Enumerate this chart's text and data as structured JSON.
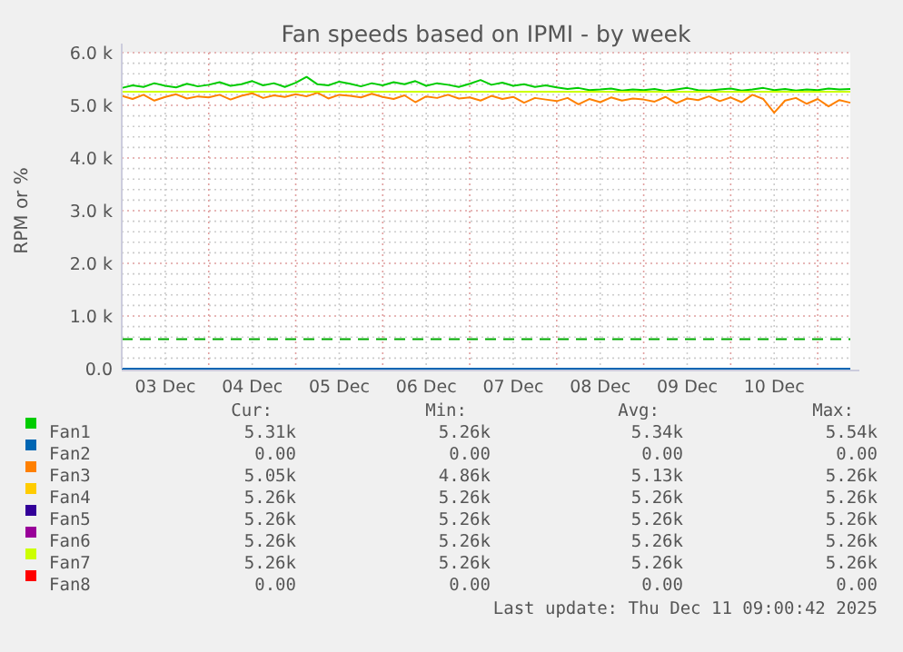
{
  "chart_data": {
    "type": "line",
    "title": "Fan speeds based on IPMI - by week",
    "ylabel": "RPM or %",
    "x": [
      "2025-12-03T00:00",
      "2025-12-03T03:00",
      "2025-12-03T06:00",
      "2025-12-03T09:00",
      "2025-12-03T12:00",
      "2025-12-03T15:00",
      "2025-12-03T18:00",
      "2025-12-03T21:00",
      "2025-12-04T00:00",
      "2025-12-04T03:00",
      "2025-12-04T06:00",
      "2025-12-04T09:00",
      "2025-12-04T12:00",
      "2025-12-04T15:00",
      "2025-12-04T18:00",
      "2025-12-04T21:00",
      "2025-12-05T00:00",
      "2025-12-05T03:00",
      "2025-12-05T06:00",
      "2025-12-05T09:00",
      "2025-12-05T12:00",
      "2025-12-05T15:00",
      "2025-12-05T18:00",
      "2025-12-05T21:00",
      "2025-12-06T00:00",
      "2025-12-06T03:00",
      "2025-12-06T06:00",
      "2025-12-06T09:00",
      "2025-12-06T12:00",
      "2025-12-06T15:00",
      "2025-12-06T18:00",
      "2025-12-06T21:00",
      "2025-12-07T00:00",
      "2025-12-07T03:00",
      "2025-12-07T06:00",
      "2025-12-07T09:00",
      "2025-12-07T12:00",
      "2025-12-07T15:00",
      "2025-12-07T18:00",
      "2025-12-07T21:00",
      "2025-12-08T00:00",
      "2025-12-08T03:00",
      "2025-12-08T06:00",
      "2025-12-08T09:00",
      "2025-12-08T12:00",
      "2025-12-08T15:00",
      "2025-12-08T18:00",
      "2025-12-08T21:00",
      "2025-12-09T00:00",
      "2025-12-09T03:00",
      "2025-12-09T06:00",
      "2025-12-09T09:00",
      "2025-12-09T12:00",
      "2025-12-09T15:00",
      "2025-12-09T18:00",
      "2025-12-09T21:00",
      "2025-12-10T00:00",
      "2025-12-10T03:00",
      "2025-12-10T06:00",
      "2025-12-10T09:00",
      "2025-12-10T12:00",
      "2025-12-10T15:00",
      "2025-12-10T18:00",
      "2025-12-10T21:00",
      "2025-12-11T00:00",
      "2025-12-11T03:00",
      "2025-12-11T06:00",
      "2025-12-11T09:00"
    ],
    "series": [
      {
        "name": "Fan1",
        "color": "#00cc00",
        "values": [
          5330,
          5380,
          5350,
          5420,
          5370,
          5340,
          5410,
          5360,
          5390,
          5440,
          5370,
          5400,
          5460,
          5380,
          5420,
          5350,
          5430,
          5540,
          5400,
          5380,
          5450,
          5410,
          5360,
          5420,
          5380,
          5440,
          5400,
          5460,
          5370,
          5420,
          5390,
          5350,
          5410,
          5480,
          5390,
          5430,
          5370,
          5400,
          5350,
          5380,
          5340,
          5310,
          5330,
          5290,
          5300,
          5320,
          5280,
          5300,
          5290,
          5310,
          5270,
          5300,
          5330,
          5290,
          5280,
          5300,
          5320,
          5280,
          5300,
          5330,
          5290,
          5310,
          5280,
          5300,
          5290,
          5320,
          5300,
          5310
        ]
      },
      {
        "name": "Fan2",
        "color": "#0066b3",
        "x": [
          "2025-12-03T00:00",
          "2025-12-11T09:00"
        ],
        "values": [
          0,
          0
        ]
      },
      {
        "name": "Fan3",
        "color": "#ff8000",
        "values": [
          5180,
          5120,
          5200,
          5090,
          5160,
          5210,
          5130,
          5170,
          5150,
          5200,
          5110,
          5180,
          5230,
          5140,
          5190,
          5160,
          5210,
          5170,
          5240,
          5130,
          5200,
          5180,
          5150,
          5220,
          5160,
          5120,
          5190,
          5060,
          5170,
          5140,
          5200,
          5130,
          5150,
          5090,
          5180,
          5120,
          5160,
          5050,
          5140,
          5110,
          5080,
          5140,
          5020,
          5120,
          5060,
          5150,
          5090,
          5130,
          5110,
          5070,
          5160,
          5040,
          5130,
          5100,
          5170,
          5080,
          5150,
          5060,
          5200,
          5120,
          4860,
          5090,
          5140,
          5030,
          5120,
          4980,
          5100,
          5050
        ]
      },
      {
        "name": "Fan4",
        "color": "#ffcc00",
        "values": [
          null,
          null,
          null,
          null,
          null,
          null,
          null,
          null,
          null,
          null,
          null,
          null,
          null,
          null,
          null,
          null,
          null,
          null,
          null,
          null,
          null,
          null,
          null,
          null,
          null,
          null,
          null,
          null,
          null,
          null,
          null,
          null,
          null,
          null,
          null,
          null,
          null,
          null,
          null,
          null,
          null,
          null,
          null,
          null,
          null,
          null,
          null,
          null,
          null,
          null,
          null,
          null,
          null,
          null,
          null,
          null,
          null,
          null,
          null,
          null,
          null,
          null,
          null,
          null,
          null,
          null,
          null,
          null
        ]
      },
      {
        "name": "Fan5",
        "color": "#330099",
        "values": [
          null,
          null,
          null,
          null,
          null,
          null,
          null,
          null,
          null,
          null,
          null,
          null,
          null,
          null,
          null,
          null,
          null,
          null,
          null,
          null,
          null,
          null,
          null,
          null,
          null,
          null,
          null,
          null,
          null,
          null,
          null,
          null,
          null,
          null,
          null,
          null,
          null,
          null,
          null,
          null,
          null,
          null,
          null,
          null,
          null,
          null,
          null,
          null,
          null,
          null,
          null,
          null,
          null,
          null,
          null,
          null,
          null,
          null,
          null,
          null,
          null,
          null,
          null,
          null,
          null,
          null,
          null,
          null
        ]
      },
      {
        "name": "Fan6",
        "color": "#990099",
        "values": [
          null,
          null,
          null,
          null,
          null,
          null,
          null,
          null,
          null,
          null,
          null,
          null,
          null,
          null,
          null,
          null,
          null,
          null,
          null,
          null,
          null,
          null,
          null,
          null,
          null,
          null,
          null,
          null,
          null,
          null,
          null,
          null,
          null,
          null,
          null,
          null,
          null,
          null,
          null,
          null,
          null,
          null,
          null,
          null,
          null,
          null,
          null,
          null,
          null,
          null,
          null,
          null,
          null,
          null,
          null,
          null,
          null,
          null,
          null,
          null,
          null,
          null,
          null,
          null,
          null,
          null,
          null,
          null
        ]
      },
      {
        "name": "Fan7",
        "color": "#ccff00",
        "x": [
          "2025-12-03T00:00",
          "2025-12-11T09:00"
        ],
        "values": [
          5260,
          5260
        ]
      },
      {
        "name": "Fan8",
        "color": "#ff0000",
        "values": [
          null,
          null,
          null,
          null,
          null,
          null,
          null,
          null,
          null,
          null,
          null,
          null,
          null,
          null,
          null,
          null,
          null,
          null,
          null,
          null,
          null,
          null,
          null,
          null,
          null,
          null,
          null,
          null,
          null,
          null,
          null,
          null,
          null,
          null,
          null,
          null,
          null,
          null,
          null,
          null,
          null,
          null,
          null,
          null,
          null,
          null,
          null,
          null,
          null,
          null,
          null,
          null,
          null,
          null,
          null,
          null,
          null,
          null,
          null,
          null,
          null,
          null,
          null,
          null,
          null,
          null,
          null,
          null
        ]
      }
    ],
    "xlim": [
      "2025-12-03T00:00",
      "2025-12-11T09:00"
    ],
    "xticks": [
      {
        "value": "2025-12-03T12:00",
        "label": "03 Dec"
      },
      {
        "value": "2025-12-04T00:00",
        "label": null
      },
      {
        "value": "2025-12-04T12:00",
        "label": "04 Dec"
      },
      {
        "value": "2025-12-05T00:00",
        "label": null
      },
      {
        "value": "2025-12-05T12:00",
        "label": "05 Dec"
      },
      {
        "value": "2025-12-06T00:00",
        "label": null
      },
      {
        "value": "2025-12-06T12:00",
        "label": "06 Dec"
      },
      {
        "value": "2025-12-07T00:00",
        "label": null
      },
      {
        "value": "2025-12-07T12:00",
        "label": "07 Dec"
      },
      {
        "value": "2025-12-08T00:00",
        "label": null
      },
      {
        "value": "2025-12-08T12:00",
        "label": "08 Dec"
      },
      {
        "value": "2025-12-09T00:00",
        "label": null
      },
      {
        "value": "2025-12-09T12:00",
        "label": "09 Dec"
      },
      {
        "value": "2025-12-10T00:00",
        "label": null
      },
      {
        "value": "2025-12-10T12:00",
        "label": "10 Dec"
      },
      {
        "value": "2025-12-11T00:00",
        "label": null
      }
    ],
    "ylim": [
      0,
      6000
    ],
    "yticks": [
      {
        "value": 0,
        "label": "0.0"
      },
      {
        "value": 200,
        "label": null
      },
      {
        "value": 400,
        "label": null
      },
      {
        "value": 600,
        "label": null
      },
      {
        "value": 800,
        "label": null
      },
      {
        "value": 1000,
        "label": "1.0 k"
      },
      {
        "value": 1200,
        "label": null
      },
      {
        "value": 1400,
        "label": null
      },
      {
        "value": 1600,
        "label": null
      },
      {
        "value": 1800,
        "label": null
      },
      {
        "value": 2000,
        "label": "2.0 k"
      },
      {
        "value": 2200,
        "label": null
      },
      {
        "value": 2400,
        "label": null
      },
      {
        "value": 2600,
        "label": null
      },
      {
        "value": 2800,
        "label": null
      },
      {
        "value": 3000,
        "label": "3.0 k"
      },
      {
        "value": 3200,
        "label": null
      },
      {
        "value": 3400,
        "label": null
      },
      {
        "value": 3600,
        "label": null
      },
      {
        "value": 3800,
        "label": null
      },
      {
        "value": 4000,
        "label": "4.0 k"
      },
      {
        "value": 4200,
        "label": null
      },
      {
        "value": 4400,
        "label": null
      },
      {
        "value": 4600,
        "label": null
      },
      {
        "value": 4800,
        "label": null
      },
      {
        "value": 5000,
        "label": "5.0 k"
      },
      {
        "value": 5200,
        "label": null
      },
      {
        "value": 5400,
        "label": null
      },
      {
        "value": 5600,
        "label": null
      },
      {
        "value": 5800,
        "label": null
      },
      {
        "value": 6000,
        "label": "6.0 k"
      }
    ],
    "ref_lines": [
      {
        "axis": "y",
        "value": 560,
        "color": "#00aa00",
        "line_style": "dashed"
      }
    ],
    "grid": true,
    "legend": "bottom",
    "marker": "none",
    "line_style": "solid",
    "annotations": [
      "Cur:",
      "Min:",
      "Avg:",
      "Max:",
      "5.31k",
      "5.26k",
      "5.34k",
      "5.54k",
      "0.00",
      "0.00",
      "0.00",
      "0.00",
      "5.05k",
      "4.86k",
      "5.13k",
      "5.26k",
      "5.26k",
      "5.26k",
      "5.26k",
      "5.26k",
      "5.26k",
      "5.26k",
      "5.26k",
      "5.26k",
      "5.26k",
      "5.26k",
      "5.26k",
      "5.26k",
      "5.26k",
      "5.26k",
      "5.26k",
      "5.26k",
      "0.00",
      "0.00",
      "0.00",
      "0.00",
      "Last update: Thu Dec 11 09:00:42 2025"
    ]
  }
}
